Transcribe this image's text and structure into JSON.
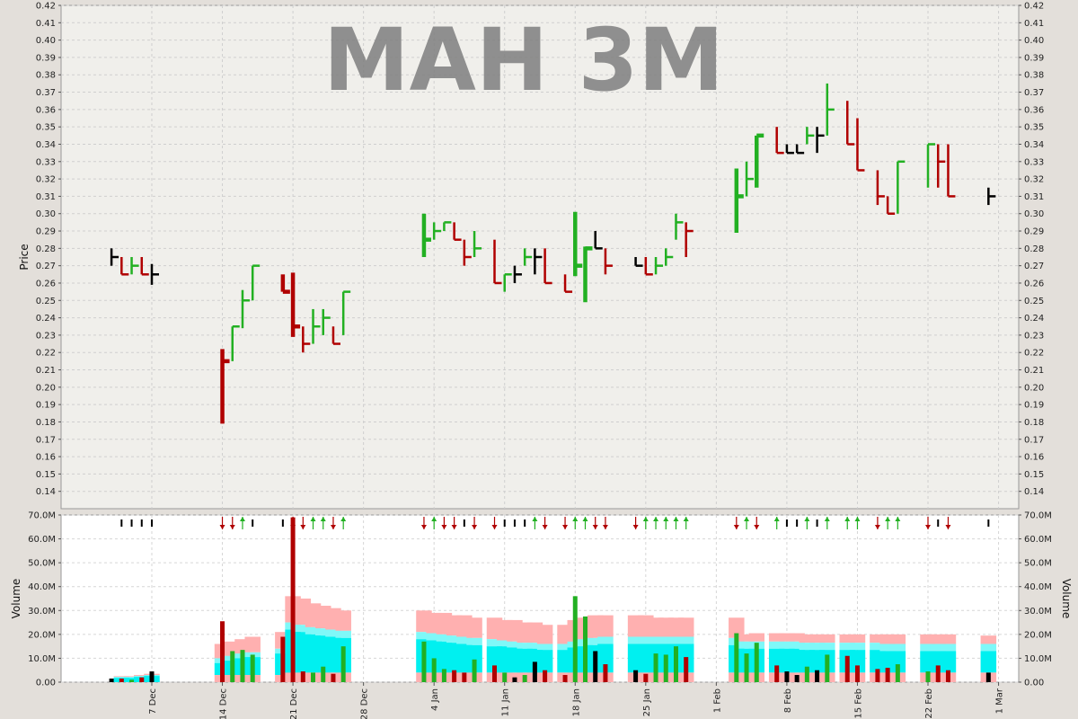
{
  "chart_data": [
    {
      "type": "ohlc",
      "title": "MAH 3M",
      "ylabel": "Price",
      "ylim": [
        0.13,
        0.42
      ],
      "yticks": [
        0.14,
        0.15,
        0.16,
        0.17,
        0.18,
        0.19,
        0.2,
        0.21,
        0.22,
        0.23,
        0.24,
        0.25,
        0.26,
        0.27,
        0.28,
        0.29,
        0.3,
        0.31,
        0.32,
        0.33,
        0.34,
        0.35,
        0.36,
        0.37,
        0.38,
        0.39,
        0.4,
        0.41,
        0.42
      ],
      "y_tick_format": "0.00",
      "grid": true,
      "colors": {
        "up": "#22b022",
        "down": "#b00000",
        "flat": "#000000",
        "background": "#f0efeb"
      },
      "x_ticks": [
        {
          "date": "2020-12-07",
          "label": "7 Dec"
        },
        {
          "date": "2020-12-14",
          "label": "14 Dec"
        },
        {
          "date": "2020-12-21",
          "label": "21 Dec"
        },
        {
          "date": "2020-12-28",
          "label": "28 Dec"
        },
        {
          "date": "2021-01-04",
          "label": "4 Jan"
        },
        {
          "date": "2021-01-11",
          "label": "11 Jan"
        },
        {
          "date": "2021-01-18",
          "label": "18 Jan"
        },
        {
          "date": "2021-01-25",
          "label": "25 Jan"
        },
        {
          "date": "2021-02-01",
          "label": "1 Feb"
        },
        {
          "date": "2021-02-08",
          "label": "8 Feb"
        },
        {
          "date": "2021-02-15",
          "label": "15 Feb"
        },
        {
          "date": "2021-02-22",
          "label": "22 Feb"
        },
        {
          "date": "2021-03-01",
          "label": "1 Mar"
        }
      ],
      "bars": [
        {
          "date": "2020-12-03",
          "high": 0.28,
          "low": 0.27,
          "close": 0.275,
          "dir": "flat"
        },
        {
          "date": "2020-12-04",
          "high": 0.275,
          "low": 0.265,
          "close": 0.265,
          "dir": "down"
        },
        {
          "date": "2020-12-05",
          "high": 0.275,
          "low": 0.265,
          "close": 0.27,
          "dir": "up"
        },
        {
          "date": "2020-12-06",
          "high": 0.275,
          "low": 0.265,
          "close": 0.265,
          "dir": "down"
        },
        {
          "date": "2020-12-07",
          "high": 0.271,
          "low": 0.259,
          "close": 0.265,
          "dir": "flat"
        },
        {
          "date": "2020-12-14",
          "high": 0.222,
          "low": 0.179,
          "close": 0.215,
          "dir": "down"
        },
        {
          "date": "2020-12-15",
          "high": 0.235,
          "low": 0.215,
          "close": 0.235,
          "dir": "up"
        },
        {
          "date": "2020-12-16",
          "high": 0.256,
          "low": 0.234,
          "close": 0.25,
          "dir": "up"
        },
        {
          "date": "2020-12-17",
          "high": 0.27,
          "low": 0.25,
          "close": 0.27,
          "dir": "up"
        },
        {
          "date": "2020-12-20",
          "high": 0.265,
          "low": 0.255,
          "close": 0.255,
          "dir": "down"
        },
        {
          "date": "2020-12-21",
          "high": 0.266,
          "low": 0.229,
          "close": 0.235,
          "dir": "down"
        },
        {
          "date": "2020-12-22",
          "high": 0.235,
          "low": 0.22,
          "close": 0.225,
          "dir": "down"
        },
        {
          "date": "2020-12-23",
          "high": 0.245,
          "low": 0.225,
          "close": 0.235,
          "dir": "up"
        },
        {
          "date": "2020-12-24",
          "high": 0.245,
          "low": 0.23,
          "close": 0.24,
          "dir": "up"
        },
        {
          "date": "2020-12-25",
          "high": 0.235,
          "low": 0.225,
          "close": 0.225,
          "dir": "down"
        },
        {
          "date": "2020-12-26",
          "high": 0.255,
          "low": 0.23,
          "close": 0.255,
          "dir": "up"
        },
        {
          "date": "2021-01-03",
          "high": 0.3,
          "low": 0.275,
          "close": 0.285,
          "dir": "up"
        },
        {
          "date": "2021-01-04",
          "high": 0.295,
          "low": 0.285,
          "close": 0.29,
          "dir": "up"
        },
        {
          "date": "2021-01-05",
          "high": 0.295,
          "low": 0.29,
          "close": 0.295,
          "dir": "up"
        },
        {
          "date": "2021-01-06",
          "high": 0.295,
          "low": 0.285,
          "close": 0.285,
          "dir": "down"
        },
        {
          "date": "2021-01-07",
          "high": 0.285,
          "low": 0.27,
          "close": 0.275,
          "dir": "down"
        },
        {
          "date": "2021-01-08",
          "high": 0.29,
          "low": 0.275,
          "close": 0.28,
          "dir": "up"
        },
        {
          "date": "2021-01-10",
          "high": 0.285,
          "low": 0.26,
          "close": 0.26,
          "dir": "down"
        },
        {
          "date": "2021-01-11",
          "high": 0.265,
          "low": 0.255,
          "close": 0.265,
          "dir": "up"
        },
        {
          "date": "2021-01-12",
          "high": 0.27,
          "low": 0.26,
          "close": 0.265,
          "dir": "flat"
        },
        {
          "date": "2021-01-13",
          "high": 0.28,
          "low": 0.27,
          "close": 0.275,
          "dir": "up"
        },
        {
          "date": "2021-01-14",
          "high": 0.28,
          "low": 0.265,
          "close": 0.275,
          "dir": "flat"
        },
        {
          "date": "2021-01-15",
          "high": 0.28,
          "low": 0.26,
          "close": 0.26,
          "dir": "down"
        },
        {
          "date": "2021-01-17",
          "high": 0.265,
          "low": 0.255,
          "close": 0.255,
          "dir": "down"
        },
        {
          "date": "2021-01-18",
          "high": 0.301,
          "low": 0.264,
          "close": 0.27,
          "dir": "up"
        },
        {
          "date": "2021-01-19",
          "high": 0.281,
          "low": 0.249,
          "close": 0.28,
          "dir": "up"
        },
        {
          "date": "2021-01-20",
          "high": 0.29,
          "low": 0.28,
          "close": 0.28,
          "dir": "flat"
        },
        {
          "date": "2021-01-21",
          "high": 0.28,
          "low": 0.265,
          "close": 0.27,
          "dir": "down"
        },
        {
          "date": "2021-01-24",
          "high": 0.275,
          "low": 0.27,
          "close": 0.27,
          "dir": "flat"
        },
        {
          "date": "2021-01-25",
          "high": 0.275,
          "low": 0.265,
          "close": 0.265,
          "dir": "down"
        },
        {
          "date": "2021-01-26",
          "high": 0.275,
          "low": 0.265,
          "close": 0.27,
          "dir": "up"
        },
        {
          "date": "2021-01-27",
          "high": 0.28,
          "low": 0.27,
          "close": 0.275,
          "dir": "up"
        },
        {
          "date": "2021-01-28",
          "high": 0.3,
          "low": 0.285,
          "close": 0.295,
          "dir": "up"
        },
        {
          "date": "2021-01-29",
          "high": 0.295,
          "low": 0.275,
          "close": 0.29,
          "dir": "down"
        },
        {
          "date": "2021-02-03",
          "high": 0.326,
          "low": 0.289,
          "close": 0.31,
          "dir": "up"
        },
        {
          "date": "2021-02-04",
          "high": 0.33,
          "low": 0.31,
          "close": 0.32,
          "dir": "up"
        },
        {
          "date": "2021-02-05",
          "high": 0.345,
          "low": 0.315,
          "close": 0.345,
          "dir": "up"
        },
        {
          "date": "2021-02-07",
          "high": 0.35,
          "low": 0.335,
          "close": 0.335,
          "dir": "down"
        },
        {
          "date": "2021-02-08",
          "high": 0.34,
          "low": 0.335,
          "close": 0.335,
          "dir": "flat"
        },
        {
          "date": "2021-02-09",
          "high": 0.34,
          "low": 0.335,
          "close": 0.335,
          "dir": "flat"
        },
        {
          "date": "2021-02-10",
          "high": 0.35,
          "low": 0.34,
          "close": 0.345,
          "dir": "up"
        },
        {
          "date": "2021-02-11",
          "high": 0.35,
          "low": 0.335,
          "close": 0.345,
          "dir": "flat"
        },
        {
          "date": "2021-02-12",
          "high": 0.375,
          "low": 0.345,
          "close": 0.36,
          "dir": "up"
        },
        {
          "date": "2021-02-14",
          "high": 0.365,
          "low": 0.34,
          "close": 0.34,
          "dir": "down"
        },
        {
          "date": "2021-02-15",
          "high": 0.355,
          "low": 0.325,
          "close": 0.325,
          "dir": "down"
        },
        {
          "date": "2021-02-17",
          "high": 0.325,
          "low": 0.305,
          "close": 0.31,
          "dir": "down"
        },
        {
          "date": "2021-02-18",
          "high": 0.31,
          "low": 0.3,
          "close": 0.3,
          "dir": "down"
        },
        {
          "date": "2021-02-19",
          "high": 0.33,
          "low": 0.3,
          "close": 0.33,
          "dir": "up"
        },
        {
          "date": "2021-02-22",
          "high": 0.34,
          "low": 0.315,
          "close": 0.34,
          "dir": "up"
        },
        {
          "date": "2021-02-23",
          "high": 0.34,
          "low": 0.315,
          "close": 0.33,
          "dir": "down"
        },
        {
          "date": "2021-02-24",
          "high": 0.34,
          "low": 0.31,
          "close": 0.31,
          "dir": "down"
        },
        {
          "date": "2021-02-28",
          "high": 0.315,
          "low": 0.305,
          "close": 0.31,
          "dir": "flat"
        }
      ]
    },
    {
      "type": "bar",
      "ylabel": "Volume",
      "ylim": [
        0,
        70000000
      ],
      "yticks": [
        {
          "value": 0,
          "label": "0.00"
        },
        {
          "value": 10000000,
          "label": "10.0M"
        },
        {
          "value": 20000000,
          "label": "20.0M"
        },
        {
          "value": 30000000,
          "label": "30.0M"
        },
        {
          "value": 40000000,
          "label": "40.0M"
        },
        {
          "value": 50000000,
          "label": "50.0M"
        },
        {
          "value": 60000000,
          "label": "60.0M"
        },
        {
          "value": 70000000,
          "label": "70.0M"
        }
      ],
      "grid": true,
      "colors": {
        "up": "#22b022",
        "down": "#b00000",
        "flat": "#000000",
        "band_outer": "#ffb0b0",
        "band_mid": "#7ff8f8",
        "band_inner": "#00f0f0",
        "background": "#ffffff"
      },
      "volumes": [
        1500000.0,
        1500000.0,
        1000000.0,
        2000000.0,
        4500000.0,
        25500000.0,
        13000000.0,
        13500000.0,
        11500000.0,
        19000000.0,
        69000000.0,
        4500000.0,
        4000000.0,
        6500000.0,
        3500000.0,
        15000000.0,
        17000000.0,
        10000000.0,
        5500000.0,
        5000000.0,
        4000000.0,
        9500000.0,
        7000000.0,
        4000000.0,
        2000000.0,
        3000000.0,
        8500000.0,
        5000000.0,
        3000000.0,
        36000000.0,
        27500000.0,
        13000000.0,
        7500000.0,
        5000000.0,
        3500000.0,
        12000000.0,
        11500000.0,
        15000000.0,
        10500000.0,
        20500000.0,
        12000000.0,
        16500000.0,
        7000000.0,
        4500000.0,
        3000000.0,
        6500000.0,
        5000000.0,
        11500000.0,
        11000000.0,
        7000000.0,
        5500000.0,
        6000000.0,
        7500000.0,
        4500000.0,
        7000000.0,
        5000000.0,
        4000000.0
      ],
      "band_outer": [
        0,
        2500000.0,
        2500000.0,
        3000000.0,
        3500000.0,
        16000000.0,
        17000000.0,
        18000000.0,
        19000000.0,
        21000000.0,
        36000000.0,
        35000000.0,
        33000000.0,
        32000000.0,
        31000000.0,
        30000000.0,
        30000000.0,
        29000000.0,
        29000000.0,
        28000000.0,
        28000000.0,
        27000000.0,
        27000000.0,
        26000000.0,
        26000000.0,
        25000000.0,
        25000000.0,
        24000000.0,
        24000000.0,
        26000000.0,
        27000000.0,
        28000000.0,
        28000000.0,
        28000000.0,
        28000000.0,
        27000000.0,
        27000000.0,
        27000000.0,
        27000000.0,
        27000000.0,
        20000000.0,
        20500000.0,
        20500000.0,
        20500000.0,
        20500000.0,
        20000000.0,
        20000000.0,
        20000000.0,
        20000000.0,
        20000000.0,
        20000000.0,
        20000000.0,
        20000000.0,
        20000000.0,
        20000000.0,
        20000000.0,
        19500000.0
      ],
      "band_mid": [
        0,
        2200000.0,
        2200000.0,
        2600000.0,
        3000000.0,
        10000000.0,
        11000000.0,
        12000000.0,
        12500000.0,
        14000000.0,
        25000000.0,
        24000000.0,
        23000000.0,
        22500000.0,
        22000000.0,
        21500000.0,
        21000000.0,
        20500000.0,
        20000000.0,
        19500000.0,
        19000000.0,
        18500000.0,
        18000000.0,
        17500000.0,
        17000000.0,
        16500000.0,
        16500000.0,
        16000000.0,
        16000000.0,
        17000000.0,
        18000000.0,
        18500000.0,
        19000000.0,
        19000000.0,
        19000000.0,
        19000000.0,
        19000000.0,
        19000000.0,
        19000000.0,
        18500000.0,
        17000000.0,
        17000000.0,
        17000000.0,
        17000000.0,
        17000000.0,
        16500000.0,
        16500000.0,
        16500000.0,
        16500000.0,
        16500000.0,
        16500000.0,
        16000000.0,
        16000000.0,
        16000000.0,
        16000000.0,
        16000000.0,
        16000000.0
      ],
      "band_inner": [
        0,
        1800000.0,
        1800000.0,
        2200000.0,
        2600000.0,
        8000000.0,
        9000000.0,
        10000000.0,
        10500000.0,
        12000000.0,
        22000000.0,
        21000000.0,
        20000000.0,
        19500000.0,
        19000000.0,
        18500000.0,
        18000000.0,
        17500000.0,
        17000000.0,
        16500000.0,
        16000000.0,
        15500000.0,
        15000000.0,
        15000000.0,
        14500000.0,
        14000000.0,
        14000000.0,
        13500000.0,
        13500000.0,
        14500000.0,
        15000000.0,
        15500000.0,
        16000000.0,
        16000000.0,
        16000000.0,
        16000000.0,
        16000000.0,
        16000000.0,
        16000000.0,
        15500000.0,
        14000000.0,
        14000000.0,
        14000000.0,
        14000000.0,
        14000000.0,
        13500000.0,
        13500000.0,
        13500000.0,
        13500000.0,
        13500000.0,
        13500000.0,
        13000000.0,
        13000000.0,
        13000000.0,
        13000000.0,
        13000000.0,
        13000000.0
      ],
      "band_floor": [
        0,
        0,
        0,
        0,
        0,
        3000000.0,
        3000000.0,
        3000000.0,
        3000000.0,
        3000000.0,
        4000000.0,
        4000000.0,
        4000000.0,
        4000000.0,
        4000000.0,
        4000000.0,
        4000000.0,
        4000000.0,
        4000000.0,
        4000000.0,
        4000000.0,
        4000000.0,
        4000000.0,
        4000000.0,
        4000000.0,
        4000000.0,
        4000000.0,
        4000000.0,
        4000000.0,
        4000000.0,
        4000000.0,
        4000000.0,
        4000000.0,
        4000000.0,
        4000000.0,
        4000000.0,
        4000000.0,
        4000000.0,
        4000000.0,
        4000000.0,
        4000000.0,
        4000000.0,
        4000000.0,
        4000000.0,
        4000000.0,
        4000000.0,
        4000000.0,
        4000000.0,
        4000000.0,
        4000000.0,
        4000000.0,
        4000000.0,
        4000000.0,
        4000000.0,
        4000000.0,
        4000000.0,
        4000000.0
      ],
      "top_arrows": [
        "none",
        "flat",
        "flat",
        "flat",
        "flat",
        "down",
        "down",
        "up",
        "flat",
        "flat",
        "down",
        "down",
        "up",
        "up",
        "down",
        "up",
        "down",
        "up",
        "down",
        "down",
        "flat",
        "down",
        "down",
        "flat",
        "flat",
        "flat",
        "up",
        "down",
        "down",
        "up",
        "up",
        "down",
        "down",
        "down",
        "up",
        "up",
        "up",
        "up",
        "up",
        "down",
        "up",
        "down",
        "up",
        "flat",
        "flat",
        "up",
        "flat",
        "up",
        "up",
        "up",
        "down",
        "up",
        "up",
        "down",
        "flat",
        "down",
        "flat"
      ]
    }
  ]
}
